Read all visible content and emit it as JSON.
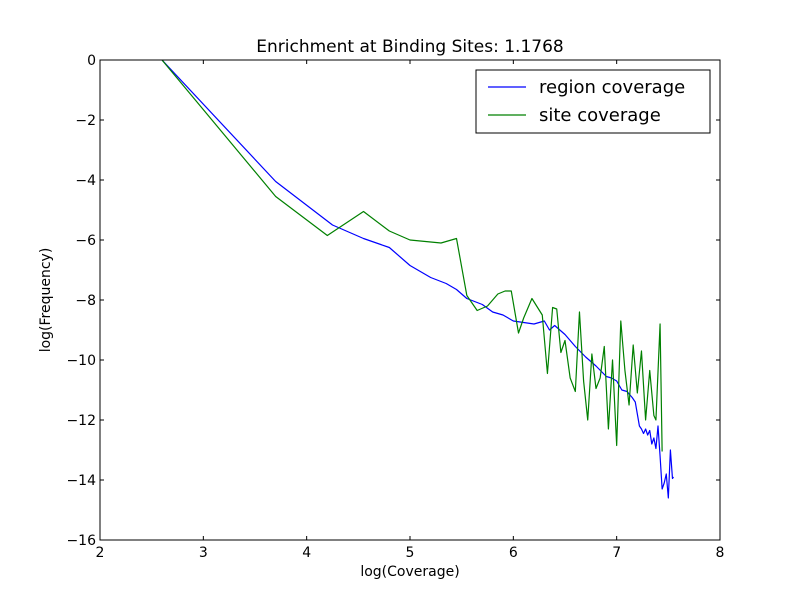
{
  "chart_data": {
    "type": "line",
    "title": "Enrichment at Binding Sites: 1.1768",
    "xlabel": "log(Coverage)",
    "ylabel": "log(Frequency)",
    "xlim": [
      2,
      8
    ],
    "ylim": [
      -16,
      0
    ],
    "xticks": [
      2,
      3,
      4,
      5,
      6,
      7,
      8
    ],
    "yticks": [
      0,
      -2,
      -4,
      -6,
      -8,
      -10,
      -12,
      -14,
      -16
    ],
    "xtick_labels": [
      "2",
      "3",
      "4",
      "5",
      "6",
      "7",
      "8"
    ],
    "ytick_labels": [
      "0",
      "−2",
      "−4",
      "−6",
      "−8",
      "−10",
      "−12",
      "−14",
      "−16"
    ],
    "grid": false,
    "legend_position": "top-right",
    "series": [
      {
        "name": "region coverage",
        "color": "#0000ff",
        "x": [
          2.6,
          3.7,
          4.25,
          4.55,
          4.8,
          5.0,
          5.2,
          5.35,
          5.45,
          5.55,
          5.7,
          5.8,
          5.9,
          6.0,
          6.1,
          6.2,
          6.3,
          6.35,
          6.4,
          6.5,
          6.6,
          6.7,
          6.8,
          6.9,
          6.95,
          7.0,
          7.05,
          7.1,
          7.15,
          7.18,
          7.2,
          7.22,
          7.24,
          7.26,
          7.28,
          7.3,
          7.32,
          7.34,
          7.36,
          7.38,
          7.4,
          7.42,
          7.44,
          7.46,
          7.48,
          7.5,
          7.52,
          7.54,
          7.55
        ],
        "y": [
          0,
          -4.05,
          -5.5,
          -5.95,
          -6.25,
          -6.85,
          -7.25,
          -7.45,
          -7.65,
          -7.95,
          -8.15,
          -8.4,
          -8.5,
          -8.7,
          -8.75,
          -8.8,
          -8.7,
          -9.0,
          -8.85,
          -9.15,
          -9.55,
          -9.9,
          -10.2,
          -10.55,
          -10.6,
          -10.7,
          -11.0,
          -11.05,
          -11.25,
          -11.4,
          -11.8,
          -12.2,
          -12.3,
          -12.45,
          -12.3,
          -12.5,
          -12.35,
          -12.8,
          -12.6,
          -12.95,
          -12.2,
          -13.2,
          -14.3,
          -14.1,
          -13.8,
          -14.6,
          -13.0,
          -13.95,
          -13.9
        ],
        "values_note": ""
      },
      {
        "name": "site coverage",
        "color": "#008000",
        "x": [
          2.6,
          3.7,
          4.2,
          4.55,
          4.8,
          5.0,
          5.3,
          5.45,
          5.55,
          5.65,
          5.75,
          5.85,
          5.92,
          5.98,
          6.05,
          6.1,
          6.18,
          6.28,
          6.33,
          6.38,
          6.42,
          6.46,
          6.5,
          6.55,
          6.6,
          6.64,
          6.68,
          6.72,
          6.76,
          6.8,
          6.84,
          6.88,
          6.92,
          6.96,
          7.0,
          7.04,
          7.08,
          7.12,
          7.16,
          7.2,
          7.24,
          7.28,
          7.32,
          7.36,
          7.38,
          7.42,
          7.44
        ],
        "y": [
          0,
          -4.55,
          -5.85,
          -5.05,
          -5.7,
          -6.0,
          -6.1,
          -5.95,
          -7.85,
          -8.35,
          -8.2,
          -7.8,
          -7.7,
          -7.7,
          -9.1,
          -8.6,
          -7.95,
          -8.5,
          -10.45,
          -8.25,
          -8.3,
          -9.75,
          -9.35,
          -10.6,
          -11.05,
          -8.4,
          -10.7,
          -12.0,
          -9.8,
          -10.95,
          -10.6,
          -9.55,
          -12.3,
          -10.0,
          -12.85,
          -8.7,
          -10.35,
          -11.5,
          -9.5,
          -11.1,
          -9.7,
          -12.0,
          -10.35,
          -11.85,
          -12.0,
          -8.8,
          -13.05
        ]
      }
    ]
  }
}
